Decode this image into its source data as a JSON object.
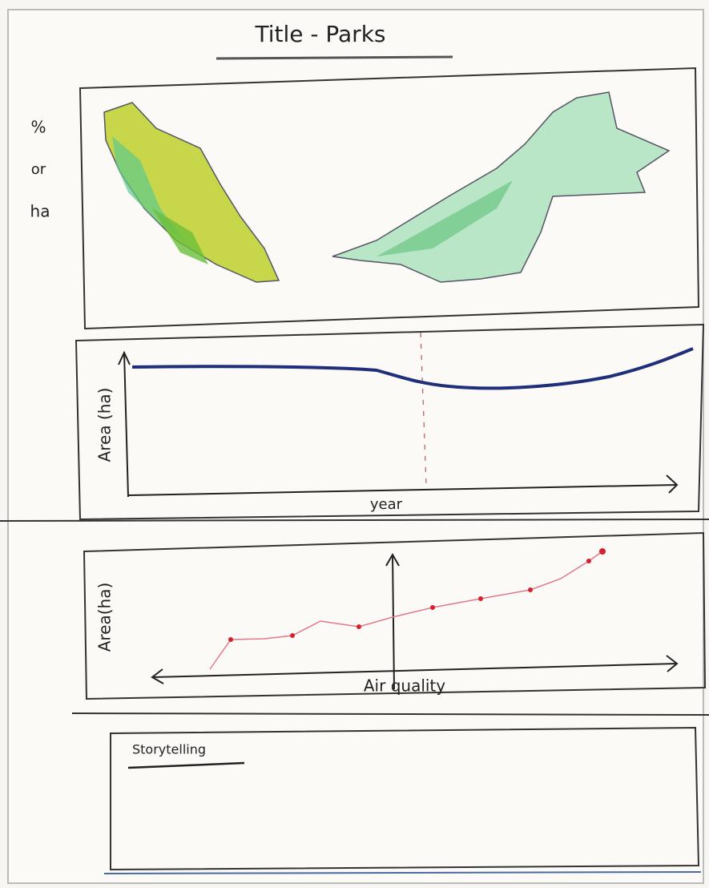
{
  "header": {
    "title": "Title - Parks"
  },
  "map_panel": {
    "legend_label": [
      "%",
      "or",
      "ha"
    ]
  },
  "line_panel": {
    "y_label": "Area (ha)",
    "x_label": "year"
  },
  "scatter_panel": {
    "y_label": "Area(ha)",
    "x_label": "Air quality"
  },
  "story_panel": {
    "title": "Storytelling"
  }
}
